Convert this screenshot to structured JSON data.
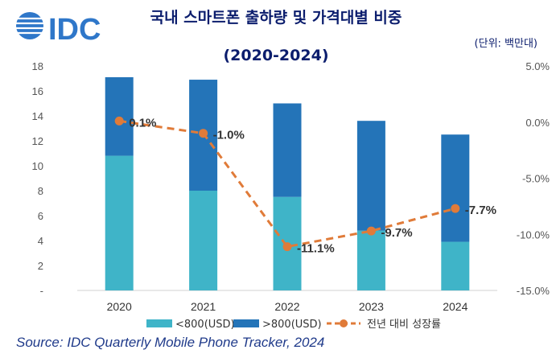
{
  "logo": {
    "text": "IDC"
  },
  "title_line1": "국내 스마트폰 출하량 및 가격대별 비중",
  "title_line2": "(2020-2024)",
  "unit_note": "(단위: 백만대)",
  "source": "Source: IDC Quarterly Mobile Phone Tracker, 2024",
  "colors": {
    "low": "#3fb4c8",
    "high": "#2474b8",
    "growth": "#e07b39",
    "title": "#0b1d6d",
    "source": "#1f3a8a"
  },
  "chart_data": {
    "type": "bar",
    "stacked": true,
    "categories": [
      "2020",
      "2021",
      "2022",
      "2023",
      "2024"
    ],
    "series": [
      {
        "name": "<800(USD)",
        "values": [
          10.8,
          8.0,
          7.5,
          4.8,
          3.9
        ]
      },
      {
        "name": ">800(USD)",
        "values": [
          6.3,
          8.9,
          7.5,
          8.8,
          8.6
        ]
      }
    ],
    "line_series": {
      "name": "전년 대비 성장률",
      "axis": "right",
      "values": [
        0.1,
        -1.0,
        -11.1,
        -9.7,
        -7.7
      ]
    },
    "data_labels": [
      "0.1%",
      "-1.0%",
      "-11.1%",
      "-9.7%",
      "-7.7%"
    ],
    "y_left": {
      "min": 0,
      "max": 18,
      "ticks": [
        "-",
        "2",
        "4",
        "6",
        "8",
        "10",
        "12",
        "14",
        "16",
        "18"
      ]
    },
    "y_right": {
      "min": -15,
      "max": 5,
      "ticks": [
        "-15.0%",
        "-10.0%",
        "-5.0%",
        "0.0%",
        "5.0%"
      ]
    },
    "legend_position": "bottom",
    "grid": false
  }
}
